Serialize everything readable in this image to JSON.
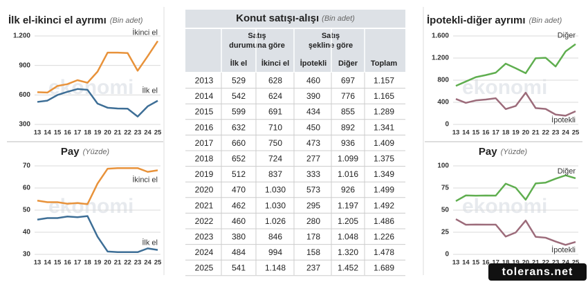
{
  "chart_data": [
    {
      "type": "line",
      "title": "İlk el-ikinci el ayrımı",
      "subtitle": "(Bin adet)",
      "categories": [
        "13",
        "14",
        "15",
        "16",
        "17",
        "18",
        "19",
        "20",
        "21",
        "22",
        "23",
        "24",
        "25"
      ],
      "series": [
        {
          "name": "İkinci el",
          "color": "#e8923a",
          "values": [
            628,
            624,
            691,
            710,
            750,
            724,
            837,
            1030,
            1030,
            1026,
            846,
            994,
            1148
          ]
        },
        {
          "name": "İlk el",
          "color": "#3d6e96",
          "values": [
            529,
            542,
            599,
            632,
            660,
            652,
            512,
            470,
            462,
            460,
            380,
            484,
            541
          ]
        }
      ],
      "ylim": [
        300,
        1200
      ],
      "yticks": [
        300,
        600,
        900,
        {
          "value": 1200,
          "label": "1.200"
        }
      ],
      "grid": true
    },
    {
      "type": "line",
      "title": "Pay",
      "subtitle": "(Yüzde)",
      "categories": [
        "13",
        "14",
        "15",
        "16",
        "17",
        "18",
        "19",
        "20",
        "21",
        "22",
        "23",
        "24",
        "25"
      ],
      "series": [
        {
          "name": "İkinci el",
          "color": "#e8923a",
          "values": [
            54.3,
            53.6,
            53.6,
            52.9,
            53.2,
            52.7,
            62.0,
            68.7,
            69.0,
            69.0,
            69.0,
            67.3,
            68.0
          ]
        },
        {
          "name": "İlk el",
          "color": "#3d6e96",
          "values": [
            45.7,
            46.4,
            46.4,
            47.1,
            46.8,
            47.3,
            38.0,
            31.3,
            31.0,
            31.0,
            31.0,
            32.7,
            32.0
          ]
        }
      ],
      "ylim": [
        30,
        70
      ],
      "yticks": [
        30,
        40,
        50,
        60,
        70
      ],
      "grid": true
    },
    {
      "type": "line",
      "title": "İpotekli-diğer ayrımı",
      "subtitle": "(Bin adet)",
      "categories": [
        "13",
        "14",
        "15",
        "16",
        "17",
        "18",
        "19",
        "20",
        "21",
        "22",
        "23",
        "24",
        "25"
      ],
      "series": [
        {
          "name": "Diğer",
          "color": "#5fae4f",
          "values": [
            697,
            776,
            855,
            892,
            936,
            1099,
            1016,
            926,
            1197,
            1205,
            1048,
            1320,
            1452
          ]
        },
        {
          "name": "İpotekli",
          "color": "#9c6b7a",
          "values": [
            460,
            390,
            434,
            450,
            473,
            277,
            333,
            573,
            295,
            280,
            178,
            158,
            237
          ]
        }
      ],
      "ylim": [
        0,
        1600
      ],
      "yticks": [
        0,
        400,
        800,
        {
          "value": 1200,
          "label": "1.200"
        },
        {
          "value": 1600,
          "label": "1.600"
        }
      ],
      "grid": true
    },
    {
      "type": "line",
      "title": "Pay",
      "subtitle": "(Yüzde)",
      "categories": [
        "13",
        "14",
        "15",
        "16",
        "17",
        "18",
        "19",
        "20",
        "21",
        "22",
        "23",
        "24",
        "25"
      ],
      "series": [
        {
          "name": "Diğer",
          "color": "#5fae4f",
          "values": [
            60.2,
            66.6,
            66.3,
            66.5,
            66.4,
            79.9,
            75.3,
            61.8,
            80.2,
            81.1,
            85.5,
            89.3,
            86.0
          ]
        },
        {
          "name": "İpotekli",
          "color": "#9c6b7a",
          "values": [
            39.8,
            33.5,
            33.7,
            33.6,
            33.6,
            20.1,
            24.7,
            38.2,
            19.8,
            18.8,
            14.5,
            10.7,
            14.0
          ]
        }
      ],
      "ylim": [
        0,
        100
      ],
      "yticks": [
        0,
        25,
        50,
        75,
        100
      ],
      "grid": true
    }
  ],
  "table": {
    "title": "Konut satışı-alışı",
    "subtitle": "(Bin adet)",
    "groups": [
      [
        "Satış",
        "durumuna göre"
      ],
      [
        "Satış",
        "şekline göre"
      ]
    ],
    "columns": [
      "İlk el",
      "İkinci el",
      "İpotekli",
      "Diğer",
      "Toplam"
    ],
    "rows": [
      [
        "2013",
        "529",
        "628",
        "460",
        "697",
        "1.157"
      ],
      [
        "2014",
        "542",
        "624",
        "390",
        "776",
        "1.165"
      ],
      [
        "2015",
        "599",
        "691",
        "434",
        "855",
        "1.289"
      ],
      [
        "2016",
        "632",
        "710",
        "450",
        "892",
        "1.341"
      ],
      [
        "2017",
        "660",
        "750",
        "473",
        "936",
        "1.409"
      ],
      [
        "2018",
        "652",
        "724",
        "277",
        "1.099",
        "1.375"
      ],
      [
        "2019",
        "512",
        "837",
        "333",
        "1.016",
        "1.349"
      ],
      [
        "2020",
        "470",
        "1.030",
        "573",
        "926",
        "1.499"
      ],
      [
        "2021",
        "462",
        "1.030",
        "295",
        "1.197",
        "1.492"
      ],
      [
        "2022",
        "460",
        "1.026",
        "280",
        "1.205",
        "1.486"
      ],
      [
        "2023",
        "380",
        "846",
        "178",
        "1.048",
        "1.226"
      ],
      [
        "2024",
        "484",
        "994",
        "158",
        "1.320",
        "1.478"
      ],
      [
        "2025",
        "541",
        "1.148",
        "237",
        "1.452",
        "1.689"
      ]
    ]
  },
  "watermark": "ekonomi",
  "site": "tolerans.net"
}
